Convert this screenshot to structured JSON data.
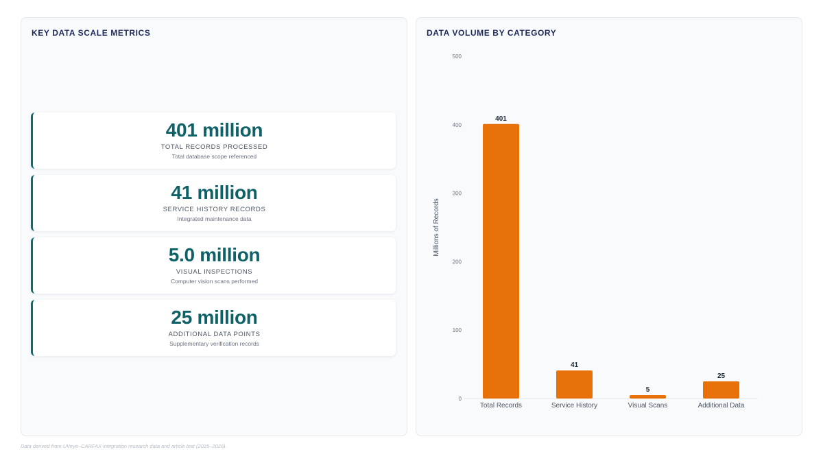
{
  "left_panel": {
    "title": "KEY DATA SCALE METRICS",
    "metrics": [
      {
        "value": "401 million",
        "label": "TOTAL RECORDS PROCESSED",
        "sub": "Total database scope referenced"
      },
      {
        "value": "41 million",
        "label": "SERVICE HISTORY RECORDS",
        "sub": "Integrated maintenance data"
      },
      {
        "value": "5.0 million",
        "label": "VISUAL INSPECTIONS",
        "sub": "Computer vision scans performed"
      },
      {
        "value": "25 million",
        "label": "ADDITIONAL DATA POINTS",
        "sub": "Supplementary verification records"
      }
    ]
  },
  "right_panel": {
    "title": "DATA VOLUME BY CATEGORY"
  },
  "chart_data": {
    "type": "bar",
    "title": "DATA VOLUME BY CATEGORY",
    "categories": [
      "Total Records",
      "Service History",
      "Visual Scans",
      "Additional Data"
    ],
    "values": [
      401,
      41,
      5,
      25
    ],
    "data_labels": [
      "401",
      "41",
      "5",
      "25"
    ],
    "xlabel": "",
    "ylabel": "Millions of Records",
    "ylim": [
      0,
      500
    ],
    "yticks": [
      0,
      100,
      200,
      300,
      400,
      500
    ],
    "grid": false,
    "legend": "none",
    "bar_color": "#e8710a"
  },
  "footnote": "Data derived from UVeye–CARFAX integration research data and article text (2025–2026)."
}
